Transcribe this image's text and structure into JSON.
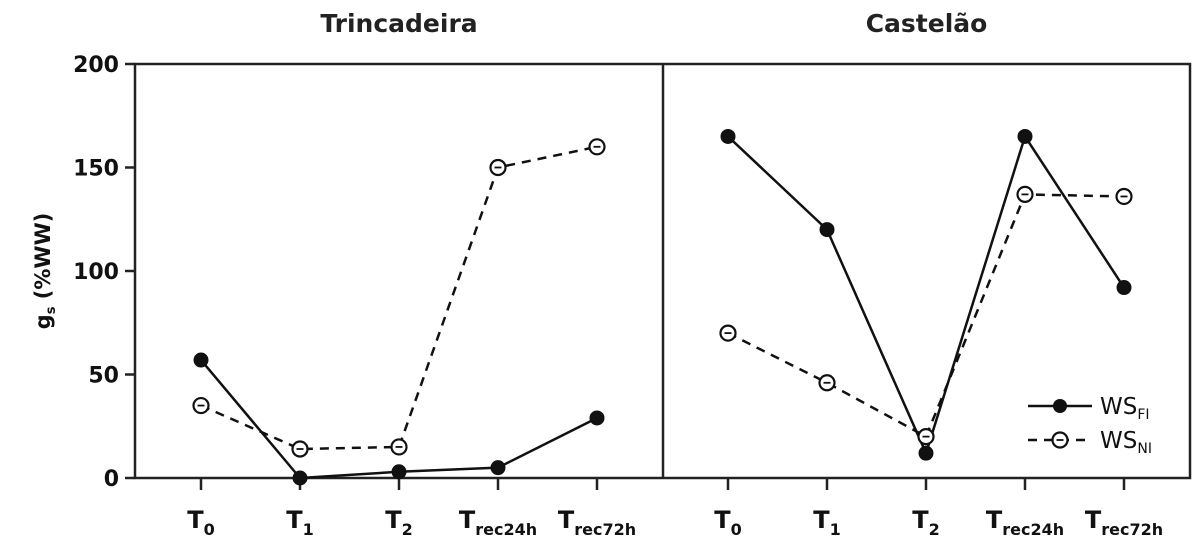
{
  "chart_data": [
    {
      "type": "line",
      "title": "Trincadeira",
      "ylabel_main": "g",
      "ylabel_sub": "s",
      "ylabel_rest": " (%WW)",
      "ylim": [
        0,
        200
      ],
      "yticks": [
        0,
        50,
        100,
        150,
        200
      ],
      "categories": [
        {
          "main": "T",
          "sub": "0"
        },
        {
          "main": "T",
          "sub": "1"
        },
        {
          "main": "T",
          "sub": "2"
        },
        {
          "main": "T",
          "sub": "rec24h"
        },
        {
          "main": "T",
          "sub": "rec72h"
        }
      ],
      "series": [
        {
          "name": "WS_FI",
          "style": "solid",
          "marker": "filled",
          "values": [
            57,
            0,
            3,
            5,
            29
          ]
        },
        {
          "name": "WS_NI",
          "style": "dashed",
          "marker": "open",
          "values": [
            35,
            14,
            15,
            150,
            160
          ]
        }
      ]
    },
    {
      "type": "line",
      "title": "Castelão",
      "ylim": [
        0,
        200
      ],
      "categories": [
        {
          "main": "T",
          "sub": "0"
        },
        {
          "main": "T",
          "sub": "1"
        },
        {
          "main": "T",
          "sub": "2"
        },
        {
          "main": "T",
          "sub": "rec24h"
        },
        {
          "main": "T",
          "sub": "rec72h"
        }
      ],
      "series": [
        {
          "name": "WS_FI",
          "style": "solid",
          "marker": "filled",
          "values": [
            165,
            120,
            12,
            165,
            92
          ]
        },
        {
          "name": "WS_NI",
          "style": "dashed",
          "marker": "open",
          "values": [
            70,
            46,
            20,
            137,
            136
          ]
        }
      ]
    }
  ],
  "legend": {
    "position": "bottom-right",
    "items": [
      {
        "main": "WS",
        "sub": "FI",
        "style": "solid",
        "marker": "filled"
      },
      {
        "main": "WS",
        "sub": "NI",
        "style": "dashed",
        "marker": "open"
      }
    ]
  },
  "colors": {
    "line": "#111111",
    "axis": "#222222"
  }
}
